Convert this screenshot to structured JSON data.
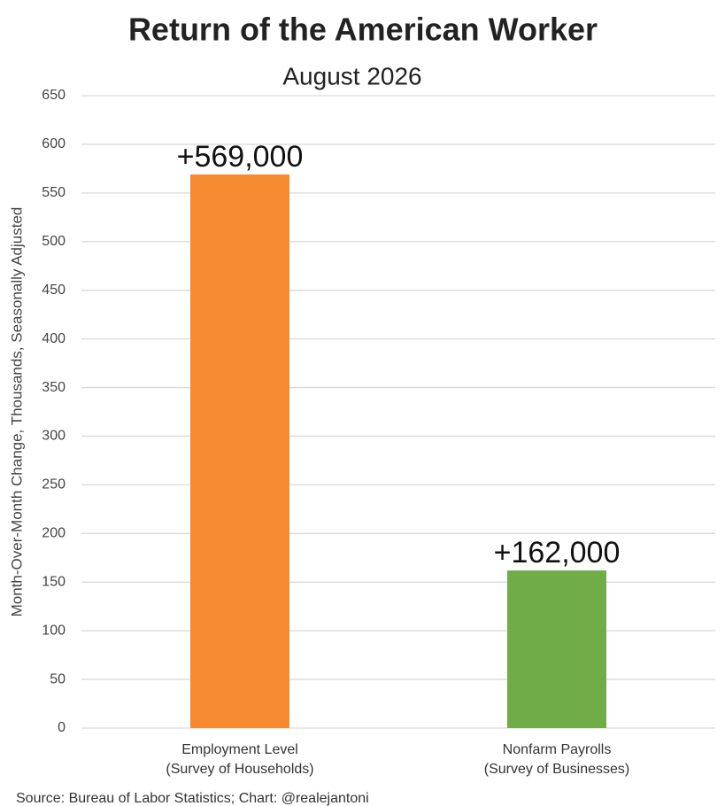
{
  "chart_data": {
    "type": "bar",
    "title": "Return of the American Worker",
    "subtitle": "August 2026",
    "y_label": "Month-Over-Month Change, Thousands, Seasonally Adjusted",
    "source": "Source: Bureau of Labor Statistics; Chart: @realejantoni",
    "categories": [
      "Employment Level\n(Survey of Households)",
      "Nonfarm Payrolls\n(Survey of Businesses)"
    ],
    "values": [
      569,
      162
    ],
    "value_labels": [
      "+569,000",
      "+162,000"
    ],
    "colors": [
      "#f58a31",
      "#70ad47"
    ],
    "ylim": [
      0,
      650
    ],
    "yticks": [
      0,
      50,
      100,
      150,
      200,
      250,
      300,
      350,
      400,
      450,
      500,
      550,
      600,
      650
    ],
    "grid": true
  }
}
